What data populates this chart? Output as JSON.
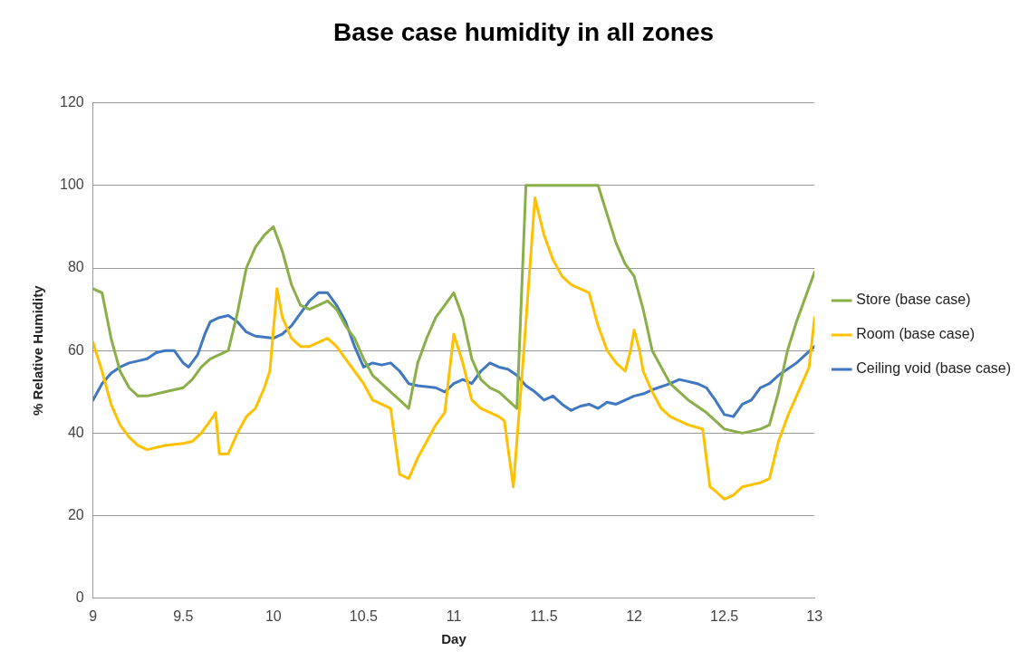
{
  "chart_data": {
    "type": "line",
    "title": "Base case humidity in all zones",
    "xlabel": "Day",
    "ylabel": "% Relative Humidity",
    "xlim": [
      9,
      13
    ],
    "xticks": [
      9,
      9.5,
      10,
      10.5,
      11,
      11.5,
      12,
      12.5,
      13
    ],
    "ylim": [
      0,
      120
    ],
    "yticks": [
      0,
      20,
      40,
      60,
      80,
      100,
      120
    ],
    "grid": "y",
    "legend": "right",
    "marker": "none",
    "line_style": "solid",
    "series": [
      {
        "name": "Store (base case)",
        "color": "#8aae48",
        "x": [
          9,
          9.05,
          9.1,
          9.15,
          9.2,
          9.25,
          9.3,
          9.4,
          9.5,
          9.55,
          9.6,
          9.65,
          9.75,
          9.8,
          9.85,
          9.9,
          9.95,
          10,
          10.05,
          10.1,
          10.15,
          10.2,
          10.25,
          10.3,
          10.35,
          10.4,
          10.45,
          10.5,
          10.55,
          10.6,
          10.65,
          10.7,
          10.75,
          10.8,
          10.85,
          10.9,
          10.95,
          11,
          11.05,
          11.1,
          11.15,
          11.2,
          11.25,
          11.3,
          11.35,
          11.4,
          11.5,
          11.6,
          11.7,
          11.8,
          11.85,
          11.9,
          11.95,
          12,
          12.05,
          12.1,
          12.15,
          12.2,
          12.3,
          12.4,
          12.5,
          12.6,
          12.7,
          12.75,
          12.8,
          12.85,
          12.9,
          13
        ],
        "values": [
          75,
          74,
          63,
          55,
          51,
          49,
          49,
          50,
          51,
          53,
          56,
          58,
          60,
          69,
          80,
          85,
          88,
          90,
          84,
          76,
          71,
          70,
          71,
          72,
          70,
          66,
          63,
          58,
          54,
          52,
          50,
          48,
          46,
          57,
          63,
          68,
          71,
          74,
          68,
          58,
          53,
          51,
          50,
          48,
          46,
          100,
          100,
          100,
          100,
          100,
          93,
          86,
          81,
          78,
          70,
          60,
          56,
          52,
          48,
          45,
          41,
          40,
          41,
          42,
          50,
          60,
          67,
          79
        ]
      },
      {
        "name": "Room (base case)",
        "color": "#ffc000",
        "x": [
          9,
          9.05,
          9.1,
          9.15,
          9.2,
          9.25,
          9.3,
          9.4,
          9.5,
          9.55,
          9.6,
          9.65,
          9.68,
          9.7,
          9.75,
          9.8,
          9.85,
          9.9,
          9.95,
          9.98,
          10.02,
          10.05,
          10.1,
          10.15,
          10.2,
          10.25,
          10.3,
          10.35,
          10.4,
          10.45,
          10.5,
          10.55,
          10.6,
          10.65,
          10.7,
          10.75,
          10.8,
          10.85,
          10.9,
          10.95,
          11,
          11.05,
          11.1,
          11.15,
          11.2,
          11.25,
          11.28,
          11.33,
          11.38,
          11.45,
          11.5,
          11.55,
          11.6,
          11.65,
          11.7,
          11.75,
          11.8,
          11.85,
          11.9,
          11.95,
          11.98,
          12,
          12.03,
          12.05,
          12.1,
          12.15,
          12.2,
          12.3,
          12.38,
          12.42,
          12.45,
          12.5,
          12.55,
          12.6,
          12.7,
          12.75,
          12.8,
          12.85,
          12.9,
          12.95,
          12.97,
          13
        ],
        "values": [
          62,
          55,
          47,
          42,
          39,
          37,
          36,
          37,
          37.5,
          38,
          40,
          43,
          45,
          35,
          35,
          40,
          44,
          46,
          51,
          55,
          75,
          68,
          63,
          61,
          61,
          62,
          63,
          61,
          58,
          55,
          52,
          48,
          47,
          46,
          30,
          29,
          34,
          38,
          42,
          45,
          64,
          57,
          48,
          46,
          45,
          44,
          43,
          27,
          55,
          97,
          88,
          82,
          78,
          76,
          75,
          74,
          66,
          60,
          57,
          55,
          60,
          65,
          60,
          55,
          50,
          46,
          44,
          42,
          41,
          27,
          26,
          24,
          25,
          27,
          28,
          29,
          38,
          44,
          49,
          54,
          56,
          68
        ]
      },
      {
        "name": "Ceiling void (base case)",
        "color": "#3f78c0",
        "x": [
          9,
          9.05,
          9.1,
          9.15,
          9.2,
          9.25,
          9.3,
          9.35,
          9.4,
          9.45,
          9.5,
          9.53,
          9.58,
          9.62,
          9.65,
          9.7,
          9.75,
          9.8,
          9.85,
          9.9,
          10,
          10.05,
          10.1,
          10.15,
          10.2,
          10.25,
          10.3,
          10.35,
          10.4,
          10.45,
          10.5,
          10.55,
          10.6,
          10.65,
          10.7,
          10.75,
          10.8,
          10.9,
          10.95,
          11,
          11.05,
          11.1,
          11.15,
          11.2,
          11.25,
          11.3,
          11.35,
          11.4,
          11.45,
          11.5,
          11.55,
          11.6,
          11.65,
          11.7,
          11.75,
          11.8,
          11.85,
          11.9,
          11.95,
          12,
          12.05,
          12.1,
          12.2,
          12.25,
          12.3,
          12.35,
          12.4,
          12.45,
          12.5,
          12.55,
          12.6,
          12.65,
          12.7,
          12.75,
          12.8,
          12.9,
          13
        ],
        "values": [
          48,
          52,
          54.5,
          56,
          57,
          57.5,
          58,
          59.5,
          60,
          60,
          57,
          56,
          59,
          64,
          67,
          68,
          68.5,
          67,
          64.5,
          63.5,
          63,
          64,
          66,
          69,
          72,
          74,
          74,
          71,
          67,
          61,
          56,
          57,
          56.5,
          57,
          55,
          52,
          51.5,
          51,
          50,
          52,
          53,
          52,
          55,
          57,
          56,
          55.5,
          54,
          51.5,
          50,
          48,
          49,
          47,
          45.5,
          46.5,
          47,
          46,
          47.5,
          47,
          48,
          49,
          49.5,
          50.5,
          52,
          53,
          52.5,
          52,
          51,
          48,
          44.5,
          44,
          47,
          48,
          51,
          52,
          54,
          57,
          61
        ]
      }
    ]
  }
}
